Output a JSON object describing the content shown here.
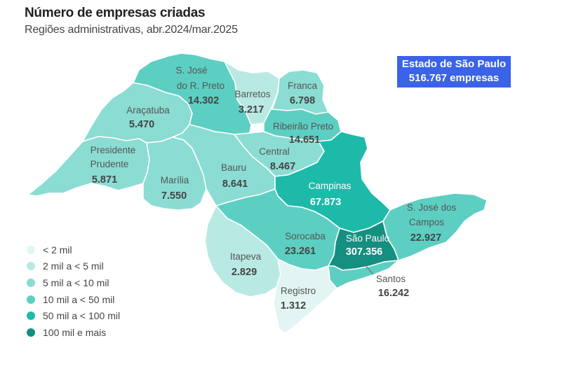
{
  "header": {
    "title": "Número de empresas criadas",
    "subtitle": "Regiões administrativas, abr.2024/mar.2025"
  },
  "total": {
    "label": "Estado de São Paulo",
    "value": "516.767 empresas"
  },
  "colors": {
    "class_lt2k": "#e2f5f2",
    "class_2k_5k": "#b9e9e3",
    "class_5k_10k": "#8bdcd2",
    "class_10k_50k": "#5ccfc2",
    "class_50k_100k": "#1ebaa9",
    "class_100k_plus": "#148f80",
    "total_box": "#3a63e8"
  },
  "legend": [
    {
      "label": "< 2 mil",
      "color": "#e2f5f2"
    },
    {
      "label": "2 mil a < 5 mil",
      "color": "#b9e9e3"
    },
    {
      "label": "5 mil a < 10 mil",
      "color": "#8bdcd2"
    },
    {
      "label": "10 mil a < 50 mil",
      "color": "#5ccfc2"
    },
    {
      "label": "50 mil a < 100 mil",
      "color": "#1ebaa9"
    },
    {
      "label": "100 mil e mais",
      "color": "#148f80"
    }
  ],
  "regions": {
    "sjrp": {
      "name1": "S. José",
      "name2": "do R. Preto",
      "value": "14.302",
      "color": "#5ccfc2"
    },
    "barretos": {
      "name": "Barretos",
      "value": "3.217",
      "color": "#b9e9e3"
    },
    "franca": {
      "name": "Franca",
      "value": "6.798",
      "color": "#8bdcd2"
    },
    "aracatuba": {
      "name": "Araçatuba",
      "value": "5.470",
      "color": "#8bdcd2"
    },
    "ribeirao": {
      "name": "Ribeirão Preto",
      "value": "14.651",
      "color": "#5ccfc2"
    },
    "presidente": {
      "name1": "Presidente",
      "name2": "Prudente",
      "value": "5.871",
      "color": "#8bdcd2"
    },
    "central": {
      "name": "Central",
      "value": "8.467",
      "color": "#8bdcd2"
    },
    "marilia": {
      "name": "Marília",
      "value": "7.550",
      "color": "#8bdcd2"
    },
    "bauru": {
      "name": "Bauru",
      "value": "8.641",
      "color": "#8bdcd2"
    },
    "campinas": {
      "name": "Campinas",
      "value": "67.873",
      "color": "#1ebaa9"
    },
    "sjcampos": {
      "name1": "S. José dos",
      "name2": "Campos",
      "value": "22.927",
      "color": "#5ccfc2"
    },
    "sorocaba": {
      "name": "Sorocaba",
      "value": "23.261",
      "color": "#5ccfc2"
    },
    "saopaulo": {
      "name": "São Paulo",
      "value": "307.356",
      "color": "#148f80"
    },
    "itapeva": {
      "name": "Itapeva",
      "value": "2.829",
      "color": "#b9e9e3"
    },
    "santos": {
      "name": "Santos",
      "value": "16.242",
      "color": "#5ccfc2"
    },
    "registro": {
      "name": "Registro",
      "value": "1.312",
      "color": "#e2f5f2"
    }
  }
}
